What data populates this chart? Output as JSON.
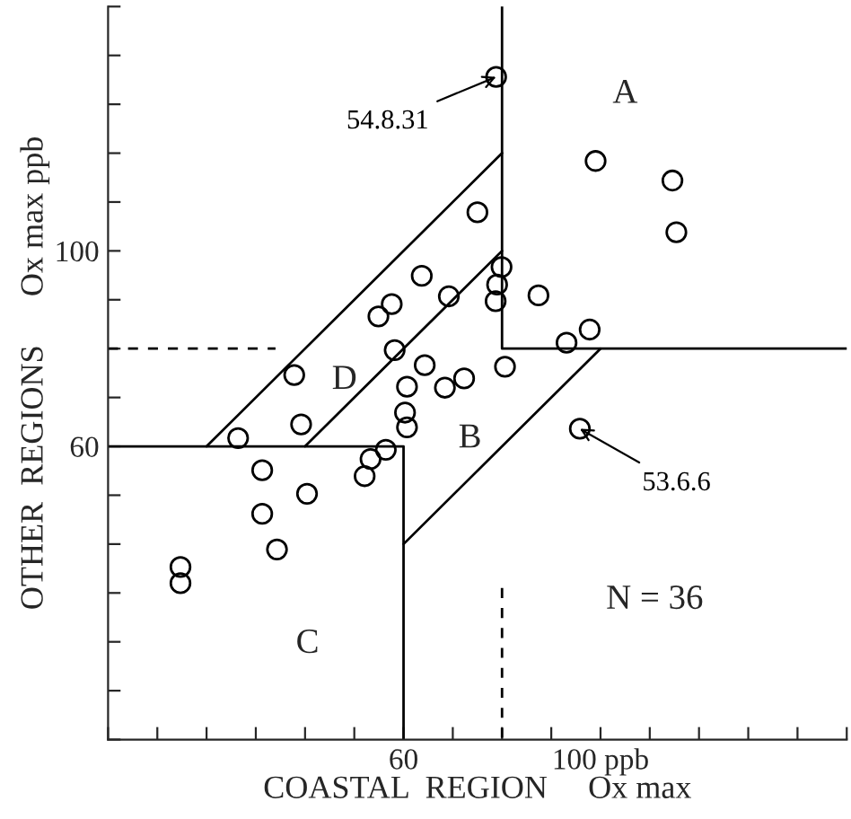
{
  "chart_data": {
    "type": "scatter",
    "xlabel": "COASTAL  REGION     Ox max",
    "ylabel": "OTHER  REGIONS      Ox max ppb",
    "xlim": [
      0,
      150
    ],
    "ylim": [
      0,
      150
    ],
    "xticks": [
      {
        "value": 0,
        "label": null
      },
      {
        "value": 10,
        "label": null
      },
      {
        "value": 20,
        "label": null
      },
      {
        "value": 30,
        "label": null
      },
      {
        "value": 40,
        "label": null
      },
      {
        "value": 50,
        "label": null
      },
      60,
      {
        "value": 70,
        "label": null
      },
      {
        "value": 80,
        "label": null
      },
      {
        "value": 90,
        "label": null
      },
      {
        "value": 100,
        "label": "100 ppb"
      },
      {
        "value": 110,
        "label": null
      },
      {
        "value": 120,
        "label": null
      },
      {
        "value": 130,
        "label": null
      },
      {
        "value": 140,
        "label": null
      },
      {
        "value": 150,
        "label": null
      }
    ],
    "yticks": [
      {
        "value": 0,
        "label": null
      },
      {
        "value": 10,
        "label": null
      },
      {
        "value": 20,
        "label": null
      },
      {
        "value": 30,
        "label": null
      },
      {
        "value": 40,
        "label": null
      },
      {
        "value": 50,
        "label": null
      },
      60,
      {
        "value": 70,
        "label": null
      },
      {
        "value": 80,
        "label": null
      },
      {
        "value": 90,
        "label": null
      },
      100,
      {
        "value": 110,
        "label": null
      },
      {
        "value": 120,
        "label": null
      },
      {
        "value": 130,
        "label": null
      },
      {
        "value": 140,
        "label": null
      },
      {
        "value": 150,
        "label": null
      }
    ],
    "grid": false,
    "series": [
      {
        "color": "#000000",
        "marker": "circle",
        "x": [
          78.8,
          99.0,
          114.6,
          115.4,
          75.0,
          79.9,
          79.0,
          78.7,
          87.4,
          63.7,
          69.2,
          57.6,
          54.9,
          58.2,
          37.8,
          93.1,
          97.8,
          80.6,
          64.3,
          60.7,
          68.4,
          72.3,
          60.3,
          60.7,
          39.2,
          26.4,
          56.4,
          53.3,
          52.1,
          31.3,
          40.4,
          31.3,
          34.3,
          14.7,
          14.7,
          95.8
        ],
        "values": [
          135.6,
          118.4,
          114.4,
          103.8,
          107.9,
          96.7,
          93.1,
          89.7,
          90.9,
          94.9,
          90.7,
          89.1,
          86.6,
          79.7,
          74.6,
          81.2,
          83.9,
          76.3,
          76.6,
          72.2,
          72.0,
          73.9,
          66.9,
          63.9,
          64.5,
          61.7,
          59.3,
          57.4,
          53.9,
          55.1,
          50.3,
          46.2,
          38.9,
          35.3,
          32.0,
          63.6
        ]
      },
      {
        "type": "line",
        "color": "#000000",
        "x": [
          80,
          80,
          150
        ],
        "values": [
          150,
          80,
          80
        ]
      },
      {
        "type": "line",
        "color": "#000000",
        "x": [
          0,
          60,
          60
        ],
        "values": [
          60,
          60,
          0
        ]
      },
      {
        "type": "line",
        "color": "#000000",
        "x": [
          20,
          80
        ],
        "values": [
          60,
          120
        ]
      },
      {
        "type": "line",
        "color": "#000000",
        "x": [
          40,
          80
        ],
        "values": [
          60,
          100
        ]
      },
      {
        "type": "line",
        "color": "#000000",
        "x": [
          60,
          100
        ],
        "values": [
          40,
          80
        ]
      },
      {
        "type": "line",
        "color": "#000000",
        "line_style": "dashed",
        "x": [
          0,
          34
        ],
        "values": [
          80,
          80
        ]
      },
      {
        "type": "line",
        "color": "#000000",
        "line_style": "dashed",
        "x": [
          80,
          80
        ],
        "values": [
          31,
          0
        ]
      }
    ],
    "annotations": [
      {
        "text": "54.8.31",
        "x": 78.8,
        "y": 135.6
      },
      {
        "text": "53.6.6",
        "x": 95.8,
        "y": 63.6
      },
      "A",
      "B",
      "C",
      "D",
      "N = 36"
    ]
  }
}
